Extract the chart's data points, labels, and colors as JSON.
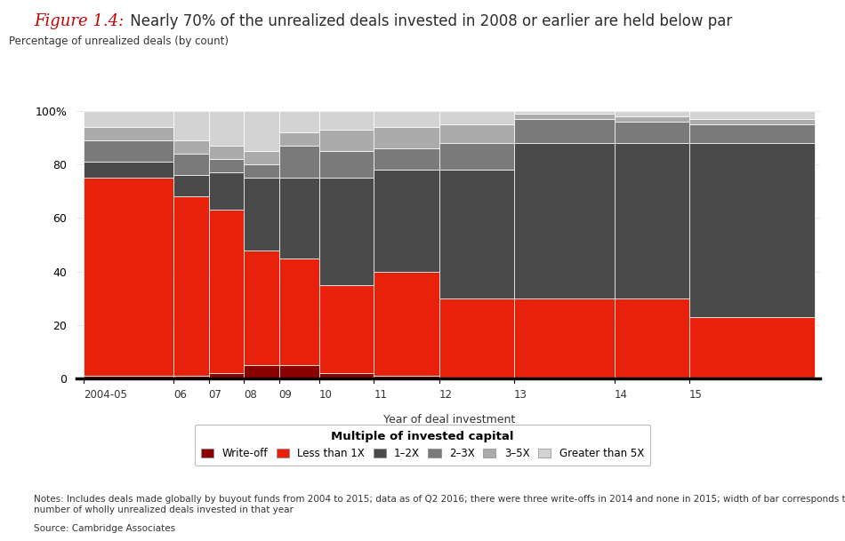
{
  "title_italic": "Figure 1.4:",
  "title_main": " Nearly 70% of the unrealized deals invested in 2008 or earlier are held below par",
  "ylabel_label": "Percentage of unrealized deals (by count)",
  "xlabel": "Year of deal investment",
  "legend_title": "Multiple of invested capital",
  "notes": "Notes: Includes deals made globally by buyout funds from 2004 to 2015; data as of Q2 2016; there were three write-offs in 2014 and none in 2015; width of bar corresponds to\nnumber of wholly unrealized deals invested in that year",
  "source": "Source: Cambridge Associates",
  "years": [
    "2004-05",
    "06",
    "07",
    "08",
    "09",
    "10",
    "11",
    "12",
    "13",
    "14",
    "15"
  ],
  "relative_widths": [
    1.8,
    0.7,
    0.7,
    0.7,
    0.8,
    1.1,
    1.3,
    1.5,
    2.0,
    1.5,
    2.5
  ],
  "data": {
    "write_off": [
      1,
      1,
      2,
      5,
      5,
      2,
      1,
      0,
      0,
      0,
      0
    ],
    "less_than_1x": [
      74,
      67,
      61,
      43,
      40,
      33,
      39,
      30,
      30,
      30,
      23
    ],
    "1_2x": [
      6,
      8,
      14,
      27,
      30,
      40,
      38,
      48,
      58,
      58,
      65
    ],
    "2_3x": [
      8,
      8,
      5,
      5,
      12,
      10,
      8,
      10,
      9,
      8,
      7
    ],
    "3_5x": [
      5,
      5,
      5,
      5,
      5,
      8,
      8,
      7,
      2,
      2,
      2
    ],
    "gt_5x": [
      6,
      11,
      13,
      15,
      8,
      7,
      6,
      5,
      1,
      2,
      3
    ]
  },
  "colors": {
    "write_off": "#8B0000",
    "less_than_1x": "#E8220A",
    "1_2x": "#4A4A4A",
    "2_3x": "#7A7A7A",
    "3_5x": "#ABABAB",
    "gt_5x": "#D3D3D3"
  },
  "legend_labels": [
    "Write-off",
    "Less than 1X",
    "1–2X",
    "2–3X",
    "3–5X",
    "Greater than 5X"
  ],
  "background_color": "#FFFFFF",
  "title_color_italic": "#CC0000",
  "title_color_main": "#2B2B2B"
}
